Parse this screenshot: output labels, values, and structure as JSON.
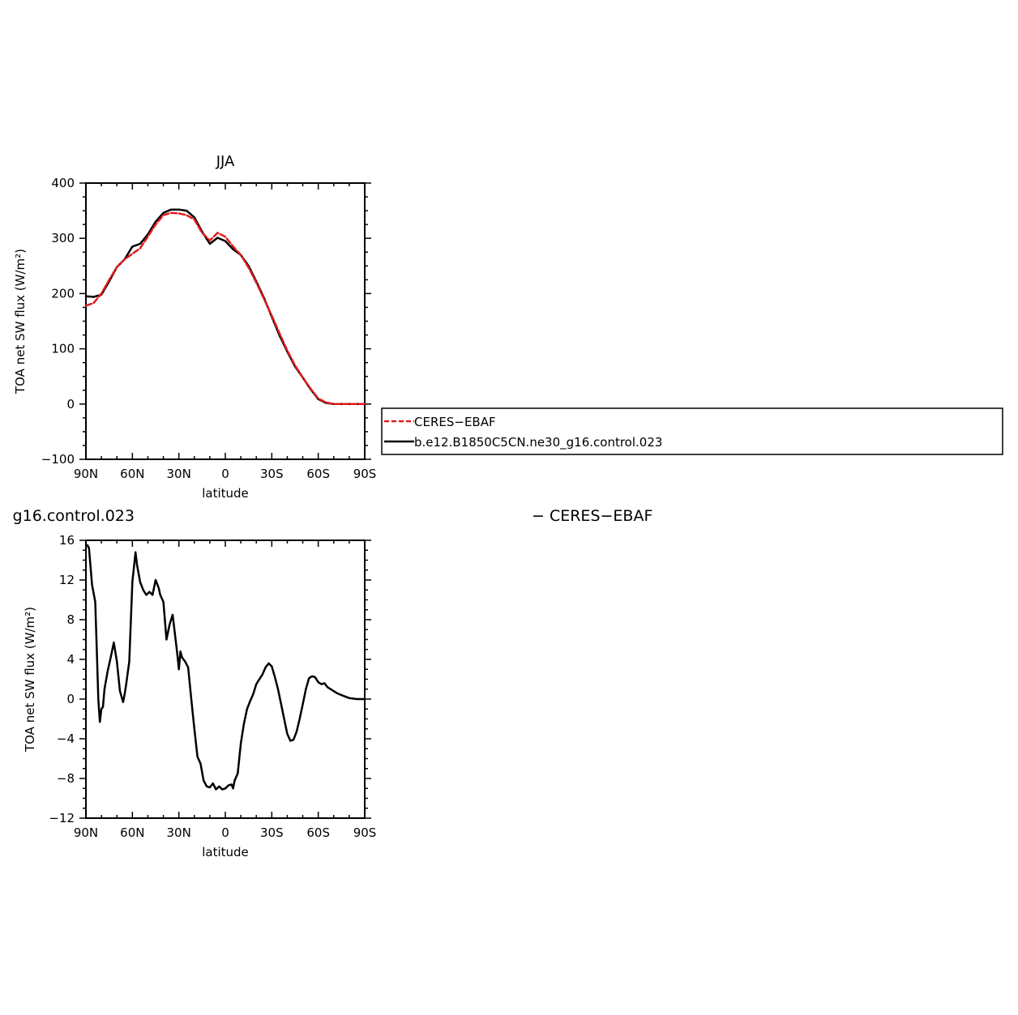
{
  "colors": {
    "ceres": "#e31a1c",
    "model": "#000000"
  },
  "chart_data": [
    {
      "type": "line",
      "title": "JJA",
      "xlabel": "latitude",
      "ylabel": "TOA net SW flux (W/m²)",
      "xlim": [
        90,
        -90
      ],
      "ylim": [
        -100,
        400
      ],
      "xticks": [
        90,
        60,
        30,
        0,
        -30,
        -60,
        -90
      ],
      "xtick_labels": [
        "90N",
        "60N",
        "30N",
        "0",
        "30S",
        "60S",
        "90S"
      ],
      "yticks": [
        -100,
        0,
        100,
        200,
        300,
        400
      ],
      "ytick_labels": [
        "−100",
        "0",
        "100",
        "200",
        "300",
        "400"
      ],
      "legend": {
        "placement": "right",
        "entries": [
          "CERES−EBAF",
          "b.e12.B1850C5CN.ne30_g16.control.023"
        ]
      },
      "series": [
        {
          "name": "CERES−EBAF",
          "style": "dashed",
          "x": [
            90,
            85,
            80,
            75,
            70,
            65,
            60,
            55,
            50,
            45,
            40,
            35,
            30,
            25,
            20,
            15,
            10,
            5,
            0,
            -5,
            -10,
            -15,
            -20,
            -25,
            -30,
            -35,
            -40,
            -45,
            -50,
            -55,
            -60,
            -65,
            -70,
            -75,
            -80,
            -85,
            -90
          ],
          "y": [
            178,
            183,
            200,
            225,
            248,
            262,
            272,
            282,
            303,
            325,
            342,
            346,
            345,
            342,
            334,
            310,
            296,
            310,
            303,
            285,
            270,
            247,
            220,
            190,
            160,
            128,
            97,
            70,
            48,
            28,
            10,
            3,
            0,
            0,
            0,
            0,
            0
          ]
        },
        {
          "name": "b.e12.B1850C5CN.ne30_g16.control.023",
          "style": "solid",
          "x": [
            90,
            85,
            80,
            75,
            70,
            65,
            60,
            55,
            50,
            45,
            40,
            35,
            30,
            25,
            20,
            15,
            10,
            5,
            0,
            -5,
            -10,
            -15,
            -20,
            -25,
            -30,
            -35,
            -40,
            -45,
            -50,
            -55,
            -60,
            -65,
            -70,
            -75,
            -80,
            -85,
            -90
          ],
          "y": [
            195,
            194,
            198,
            222,
            248,
            262,
            285,
            290,
            307,
            330,
            346,
            352,
            352,
            350,
            338,
            312,
            290,
            301,
            295,
            280,
            270,
            250,
            222,
            192,
            158,
            124,
            95,
            68,
            48,
            27,
            9,
            2,
            0,
            0,
            0,
            0,
            0
          ]
        }
      ]
    },
    {
      "type": "line",
      "title": "g16.control.023",
      "title_right": "− CERES−EBAF",
      "xlabel": "latitude",
      "ylabel": "TOA net SW flux (W/m²)",
      "xlim": [
        90,
        -90
      ],
      "ylim": [
        -12,
        16
      ],
      "xticks": [
        90,
        60,
        30,
        0,
        -30,
        -60,
        -90
      ],
      "xtick_labels": [
        "90N",
        "60N",
        "30N",
        "0",
        "30S",
        "60S",
        "90S"
      ],
      "yticks": [
        -12,
        -8,
        -4,
        0,
        4,
        8,
        12,
        16
      ],
      "ytick_labels": [
        "−12",
        "−8",
        "−4",
        "0",
        "4",
        "8",
        "12",
        "16"
      ],
      "series": [
        {
          "style": "solid",
          "x": [
            89,
            88,
            86,
            84,
            83,
            82,
            81,
            80,
            79,
            78,
            76,
            74,
            72,
            70,
            68,
            66,
            65,
            64,
            62,
            60,
            58,
            57,
            55,
            53,
            51,
            49,
            47,
            45,
            43,
            42,
            40,
            38,
            36,
            34,
            33,
            31,
            30,
            29,
            28,
            27,
            26,
            24,
            22,
            20,
            18,
            16,
            14,
            12,
            10,
            8,
            6,
            4,
            2,
            0,
            -2,
            -4,
            -5,
            -6,
            -8,
            -10,
            -12,
            -14,
            -16,
            -18,
            -20,
            -22,
            -24,
            -26,
            -28,
            -30,
            -32,
            -34,
            -36,
            -38,
            -40,
            -42,
            -44,
            -46,
            -48,
            -50,
            -52,
            -54,
            -56,
            -58,
            -60,
            -62,
            -64,
            -66,
            -68,
            -70,
            -72,
            -75,
            -80,
            -85,
            -90
          ],
          "y": [
            15.5,
            15.2,
            11.5,
            9.8,
            5.0,
            0.0,
            -2.3,
            -1.0,
            -0.8,
            1.0,
            2.8,
            4.2,
            5.7,
            3.8,
            0.8,
            -0.3,
            0.5,
            1.5,
            3.8,
            11.8,
            14.8,
            13.5,
            11.8,
            11.0,
            10.5,
            10.8,
            10.5,
            12.0,
            11.2,
            10.5,
            9.8,
            6.0,
            7.5,
            8.5,
            7.2,
            4.5,
            3.0,
            4.8,
            4.2,
            4.0,
            3.8,
            3.2,
            0.0,
            -3.0,
            -5.8,
            -6.5,
            -8.2,
            -8.8,
            -8.9,
            -8.5,
            -9.1,
            -8.8,
            -9.1,
            -9.0,
            -8.7,
            -8.6,
            -9.0,
            -8.2,
            -7.5,
            -4.5,
            -2.5,
            -1.0,
            -0.2,
            0.5,
            1.5,
            2.0,
            2.5,
            3.2,
            3.6,
            3.3,
            2.2,
            1.0,
            -0.5,
            -2.0,
            -3.5,
            -4.2,
            -4.1,
            -3.3,
            -2.0,
            -0.5,
            1.0,
            2.1,
            2.3,
            2.2,
            1.7,
            1.5,
            1.6,
            1.2,
            1.0,
            0.8,
            0.6,
            0.4,
            0.1,
            0.0,
            0.0
          ]
        }
      ]
    }
  ]
}
